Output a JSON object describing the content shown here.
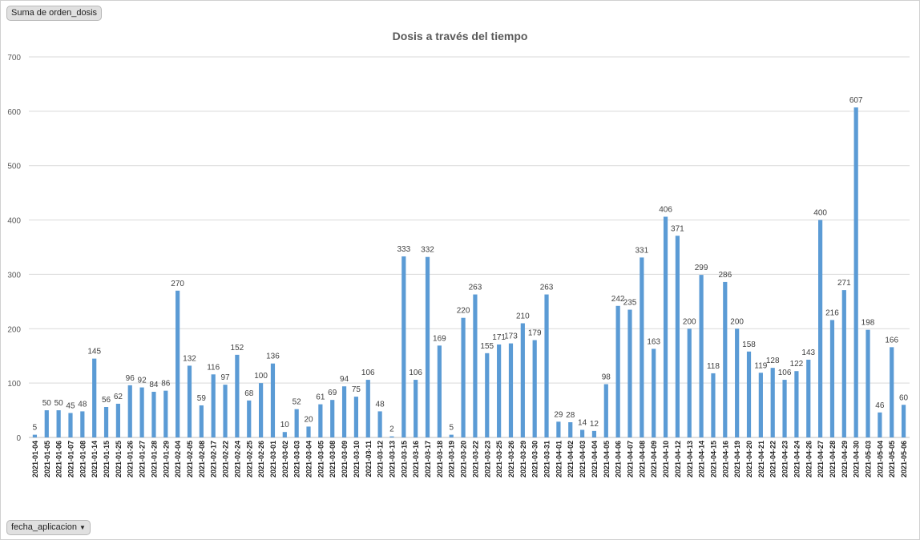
{
  "field_buttons": {
    "values_field": "Suma de orden_dosis",
    "axis_field": "fecha_aplicacion",
    "axis_field_icon": "dropdown-arrow-icon"
  },
  "colors": {
    "bar": "#5b9bd5",
    "grid": "#d9d9d9",
    "text": "#595959"
  },
  "chart_data": {
    "type": "bar",
    "title": "Dosis a través del tiempo",
    "xlabel": "",
    "ylabel": "",
    "ylim": [
      0,
      700
    ],
    "yticks": [
      0,
      100,
      200,
      300,
      400,
      500,
      600,
      700
    ],
    "grid": true,
    "legend": "none",
    "categories": [
      "2021-01-04",
      "2021-01-05",
      "2021-01-06",
      "2021-01-07",
      "2021-01-08",
      "2021-01-14",
      "2021-01-15",
      "2021-01-25",
      "2021-01-26",
      "2021-01-27",
      "2021-01-28",
      "2021-01-29",
      "2021-02-04",
      "2021-02-05",
      "2021-02-08",
      "2021-02-17",
      "2021-02-22",
      "2021-02-24",
      "2021-02-25",
      "2021-02-26",
      "2021-03-01",
      "2021-03-02",
      "2021-03-03",
      "2021-03-04",
      "2021-03-05",
      "2021-03-08",
      "2021-03-09",
      "2021-03-10",
      "2021-03-11",
      "2021-03-12",
      "2021-03-13",
      "2021-03-15",
      "2021-03-16",
      "2021-03-17",
      "2021-03-18",
      "2021-03-19",
      "2021-03-20",
      "2021-03-22",
      "2021-03-23",
      "2021-03-25",
      "2021-03-26",
      "2021-03-29",
      "2021-03-30",
      "2021-03-31",
      "2021-04-01",
      "2021-04-02",
      "2021-04-03",
      "2021-04-04",
      "2021-04-05",
      "2021-04-06",
      "2021-04-07",
      "2021-04-08",
      "2021-04-09",
      "2021-04-10",
      "2021-04-12",
      "2021-04-13",
      "2021-04-14",
      "2021-04-15",
      "2021-04-16",
      "2021-04-19",
      "2021-04-20",
      "2021-04-21",
      "2021-04-22",
      "2021-04-23",
      "2021-04-24",
      "2021-04-26",
      "2021-04-27",
      "2021-04-28",
      "2021-04-29",
      "2021-04-30",
      "2021-05-03",
      "2021-05-04",
      "2021-05-05",
      "2021-05-06"
    ],
    "series": [
      {
        "name": "Suma de orden_dosis",
        "values": [
          5,
          50,
          50,
          45,
          48,
          145,
          56,
          62,
          96,
          92,
          84,
          86,
          270,
          132,
          59,
          116,
          97,
          152,
          68,
          100,
          136,
          10,
          52,
          20,
          61,
          69,
          94,
          75,
          106,
          48,
          2,
          333,
          106,
          332,
          169,
          5,
          220,
          263,
          155,
          171,
          173,
          210,
          179,
          263,
          29,
          28,
          14,
          12,
          98,
          242,
          235,
          331,
          163,
          406,
          371,
          200,
          299,
          118,
          286,
          200,
          158,
          119,
          128,
          106,
          122,
          143,
          400,
          216,
          271,
          607,
          198,
          46,
          166,
          60
        ]
      }
    ]
  }
}
